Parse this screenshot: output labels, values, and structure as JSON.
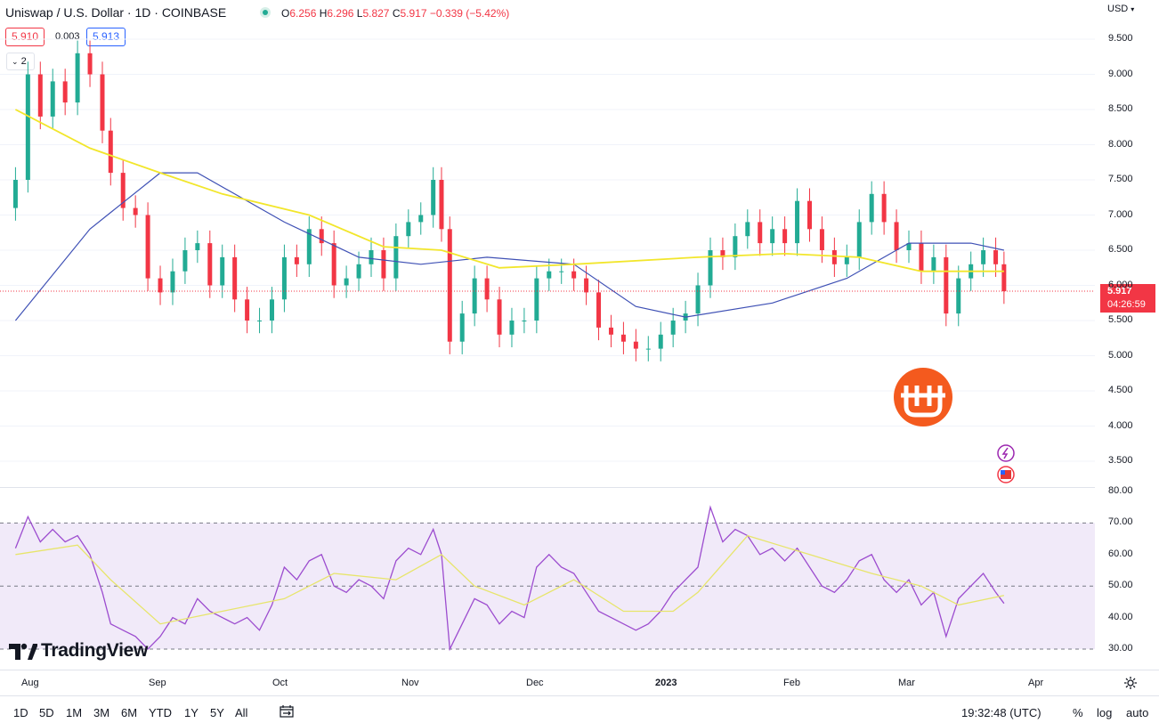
{
  "header": {
    "symbol": "Uniswap / U.S. Dollar · 1D · COINBASE",
    "o_key": "O",
    "o_val": "6.256",
    "h_key": "H",
    "h_val": "6.296",
    "l_key": "L",
    "l_val": "5.827",
    "c_key": "C",
    "c_val": "5.917",
    "change": "−0.339 (−5.42%)",
    "bid": "5.910",
    "spread": "0.003",
    "ask": "5.913",
    "collapse_count": "2",
    "status_color": "#22ab94"
  },
  "price_axis": {
    "currency": "USD",
    "ticks": [
      "9.500",
      "9.000",
      "8.500",
      "8.000",
      "7.500",
      "7.000",
      "6.500",
      "6.000",
      "5.500",
      "5.000",
      "4.500",
      "4.000",
      "3.500"
    ],
    "last_price": "5.917",
    "countdown": "04:26:59"
  },
  "rsi_axis": {
    "ticks": [
      "80.00",
      "70.00",
      "60.00",
      "50.00",
      "40.00",
      "30.00"
    ]
  },
  "time_axis": {
    "labels": [
      "Aug",
      "Sep",
      "Oct",
      "Nov",
      "Dec",
      "2023",
      "Feb",
      "Mar",
      "Apr"
    ]
  },
  "toolbar": {
    "timeframes": [
      "1D",
      "5D",
      "1M",
      "3M",
      "6M",
      "YTD",
      "1Y",
      "5Y",
      "All"
    ],
    "clock": "19:32:48 (UTC)",
    "percent": "%",
    "log": "log",
    "auto": "auto"
  },
  "branding": {
    "logo_text": "TradingView"
  },
  "colors": {
    "up": "#22ab94",
    "down": "#f23645",
    "ma_fast": "#3f51b5",
    "ma_slow": "#f2e62b",
    "rsi_line": "#9c4ccf",
    "rsi_ma": "#e7e56b",
    "rsi_band": "#f1eaf9",
    "accent": "#2962ff"
  },
  "chart_data": [
    {
      "type": "candlestick",
      "title": "Uniswap / U.S. Dollar · 1D · COINBASE",
      "y_range": [
        3.2,
        9.85
      ],
      "x_range": [
        "2022-07-28",
        "2023-04-12"
      ],
      "last_close": 5.917,
      "closes": [
        {
          "date": "2022-07-28",
          "close": 7.5
        },
        {
          "date": "2022-07-31",
          "close": 9.0
        },
        {
          "date": "2022-08-03",
          "close": 8.4
        },
        {
          "date": "2022-08-06",
          "close": 8.9
        },
        {
          "date": "2022-08-09",
          "close": 8.6
        },
        {
          "date": "2022-08-12",
          "close": 9.3
        },
        {
          "date": "2022-08-15",
          "close": 9.0
        },
        {
          "date": "2022-08-18",
          "close": 8.2
        },
        {
          "date": "2022-08-20",
          "close": 7.6
        },
        {
          "date": "2022-08-23",
          "close": 7.1
        },
        {
          "date": "2022-08-26",
          "close": 7.0
        },
        {
          "date": "2022-08-29",
          "close": 6.1
        },
        {
          "date": "2022-09-01",
          "close": 5.9
        },
        {
          "date": "2022-09-04",
          "close": 6.2
        },
        {
          "date": "2022-09-07",
          "close": 6.5
        },
        {
          "date": "2022-09-10",
          "close": 6.6
        },
        {
          "date": "2022-09-13",
          "close": 6.0
        },
        {
          "date": "2022-09-16",
          "close": 6.4
        },
        {
          "date": "2022-09-19",
          "close": 5.8
        },
        {
          "date": "2022-09-22",
          "close": 5.5
        },
        {
          "date": "2022-09-25",
          "close": 5.5
        },
        {
          "date": "2022-09-28",
          "close": 5.8
        },
        {
          "date": "2022-10-01",
          "close": 6.4
        },
        {
          "date": "2022-10-04",
          "close": 6.3
        },
        {
          "date": "2022-10-07",
          "close": 6.8
        },
        {
          "date": "2022-10-10",
          "close": 6.6
        },
        {
          "date": "2022-10-13",
          "close": 6.0
        },
        {
          "date": "2022-10-16",
          "close": 6.1
        },
        {
          "date": "2022-10-19",
          "close": 6.3
        },
        {
          "date": "2022-10-22",
          "close": 6.5
        },
        {
          "date": "2022-10-25",
          "close": 6.1
        },
        {
          "date": "2022-10-28",
          "close": 6.7
        },
        {
          "date": "2022-10-31",
          "close": 6.9
        },
        {
          "date": "2022-11-03",
          "close": 7.0
        },
        {
          "date": "2022-11-06",
          "close": 7.5
        },
        {
          "date": "2022-11-08",
          "close": 6.8
        },
        {
          "date": "2022-11-10",
          "close": 5.2
        },
        {
          "date": "2022-11-13",
          "close": 5.6
        },
        {
          "date": "2022-11-16",
          "close": 6.1
        },
        {
          "date": "2022-11-19",
          "close": 5.8
        },
        {
          "date": "2022-11-22",
          "close": 5.3
        },
        {
          "date": "2022-11-25",
          "close": 5.5
        },
        {
          "date": "2022-11-28",
          "close": 5.5
        },
        {
          "date": "2022-12-01",
          "close": 6.1
        },
        {
          "date": "2022-12-04",
          "close": 6.2
        },
        {
          "date": "2022-12-07",
          "close": 6.2
        },
        {
          "date": "2022-12-10",
          "close": 6.1
        },
        {
          "date": "2022-12-13",
          "close": 5.9
        },
        {
          "date": "2022-12-16",
          "close": 5.4
        },
        {
          "date": "2022-12-19",
          "close": 5.3
        },
        {
          "date": "2022-12-22",
          "close": 5.2
        },
        {
          "date": "2022-12-25",
          "close": 5.1
        },
        {
          "date": "2022-12-28",
          "close": 5.1
        },
        {
          "date": "2022-12-31",
          "close": 5.3
        },
        {
          "date": "2023-01-03",
          "close": 5.5
        },
        {
          "date": "2023-01-06",
          "close": 5.6
        },
        {
          "date": "2023-01-09",
          "close": 6.0
        },
        {
          "date": "2023-01-12",
          "close": 6.5
        },
        {
          "date": "2023-01-15",
          "close": 6.4
        },
        {
          "date": "2023-01-18",
          "close": 6.7
        },
        {
          "date": "2023-01-21",
          "close": 6.9
        },
        {
          "date": "2023-01-24",
          "close": 6.6
        },
        {
          "date": "2023-01-27",
          "close": 6.8
        },
        {
          "date": "2023-01-30",
          "close": 6.6
        },
        {
          "date": "2023-02-02",
          "close": 7.2
        },
        {
          "date": "2023-02-05",
          "close": 6.8
        },
        {
          "date": "2023-02-08",
          "close": 6.5
        },
        {
          "date": "2023-02-11",
          "close": 6.3
        },
        {
          "date": "2023-02-14",
          "close": 6.4
        },
        {
          "date": "2023-02-17",
          "close": 6.9
        },
        {
          "date": "2023-02-20",
          "close": 7.3
        },
        {
          "date": "2023-02-23",
          "close": 6.9
        },
        {
          "date": "2023-02-26",
          "close": 6.5
        },
        {
          "date": "2023-03-01",
          "close": 6.6
        },
        {
          "date": "2023-03-04",
          "close": 6.2
        },
        {
          "date": "2023-03-07",
          "close": 6.4
        },
        {
          "date": "2023-03-10",
          "close": 5.6
        },
        {
          "date": "2023-03-13",
          "close": 6.1
        },
        {
          "date": "2023-03-16",
          "close": 6.3
        },
        {
          "date": "2023-03-19",
          "close": 6.5
        },
        {
          "date": "2023-03-22",
          "close": 6.3
        },
        {
          "date": "2023-03-24",
          "close": 5.917
        }
      ],
      "overlays": [
        {
          "label": "ma_fast",
          "points": [
            [
              "2022-07-28",
              5.5
            ],
            [
              "2022-08-15",
              6.8
            ],
            [
              "2022-09-01",
              7.6
            ],
            [
              "2022-09-10",
              7.6
            ],
            [
              "2022-10-01",
              6.9
            ],
            [
              "2022-10-19",
              6.4
            ],
            [
              "2022-11-03",
              6.3
            ],
            [
              "2022-11-19",
              6.4
            ],
            [
              "2022-12-10",
              6.3
            ],
            [
              "2022-12-25",
              5.7
            ],
            [
              "2023-01-06",
              5.55
            ],
            [
              "2023-01-27",
              5.75
            ],
            [
              "2023-02-14",
              6.1
            ],
            [
              "2023-03-01",
              6.6
            ],
            [
              "2023-03-16",
              6.6
            ],
            [
              "2023-03-24",
              6.5
            ]
          ]
        },
        {
          "label": "ma_slow",
          "points": [
            [
              "2022-07-28",
              8.5
            ],
            [
              "2022-08-15",
              7.95
            ],
            [
              "2022-09-01",
              7.6
            ],
            [
              "2022-09-16",
              7.3
            ],
            [
              "2022-10-07",
              7.0
            ],
            [
              "2022-10-25",
              6.55
            ],
            [
              "2022-11-08",
              6.5
            ],
            [
              "2022-11-22",
              6.25
            ],
            [
              "2022-12-10",
              6.3
            ],
            [
              "2023-01-09",
              6.4
            ],
            [
              "2023-01-30",
              6.45
            ],
            [
              "2023-02-17",
              6.4
            ],
            [
              "2023-03-04",
              6.2
            ],
            [
              "2023-03-24",
              6.2
            ]
          ]
        }
      ]
    },
    {
      "type": "line",
      "y_range": [
        27.5,
        81
      ],
      "bands": [
        30,
        50,
        70
      ],
      "series": [
        {
          "label": "rsi",
          "points": [
            [
              "2022-07-28",
              62
            ],
            [
              "2022-07-31",
              72
            ],
            [
              "2022-08-03",
              64
            ],
            [
              "2022-08-06",
              68
            ],
            [
              "2022-08-09",
              64
            ],
            [
              "2022-08-12",
              66
            ],
            [
              "2022-08-15",
              60
            ],
            [
              "2022-08-18",
              48
            ],
            [
              "2022-08-20",
              38
            ],
            [
              "2022-08-23",
              36
            ],
            [
              "2022-08-26",
              34
            ],
            [
              "2022-08-29",
              30
            ],
            [
              "2022-09-01",
              34
            ],
            [
              "2022-09-04",
              40
            ],
            [
              "2022-09-07",
              38
            ],
            [
              "2022-09-10",
              46
            ],
            [
              "2022-09-13",
              42
            ],
            [
              "2022-09-16",
              40
            ],
            [
              "2022-09-19",
              38
            ],
            [
              "2022-09-22",
              40
            ],
            [
              "2022-09-25",
              36
            ],
            [
              "2022-09-28",
              44
            ],
            [
              "2022-10-01",
              56
            ],
            [
              "2022-10-04",
              52
            ],
            [
              "2022-10-07",
              58
            ],
            [
              "2022-10-10",
              60
            ],
            [
              "2022-10-13",
              50
            ],
            [
              "2022-10-16",
              48
            ],
            [
              "2022-10-19",
              52
            ],
            [
              "2022-10-22",
              50
            ],
            [
              "2022-10-25",
              46
            ],
            [
              "2022-10-28",
              58
            ],
            [
              "2022-10-31",
              62
            ],
            [
              "2022-11-03",
              60
            ],
            [
              "2022-11-06",
              68
            ],
            [
              "2022-11-08",
              60
            ],
            [
              "2022-11-10",
              30
            ],
            [
              "2022-11-13",
              38
            ],
            [
              "2022-11-16",
              46
            ],
            [
              "2022-11-19",
              44
            ],
            [
              "2022-11-22",
              38
            ],
            [
              "2022-11-25",
              42
            ],
            [
              "2022-11-28",
              40
            ],
            [
              "2022-12-01",
              56
            ],
            [
              "2022-12-04",
              60
            ],
            [
              "2022-12-07",
              56
            ],
            [
              "2022-12-10",
              54
            ],
            [
              "2022-12-13",
              48
            ],
            [
              "2022-12-16",
              42
            ],
            [
              "2022-12-19",
              40
            ],
            [
              "2022-12-22",
              38
            ],
            [
              "2022-12-25",
              36
            ],
            [
              "2022-12-28",
              38
            ],
            [
              "2022-12-31",
              42
            ],
            [
              "2023-01-03",
              48
            ],
            [
              "2023-01-06",
              52
            ],
            [
              "2023-01-09",
              56
            ],
            [
              "2023-01-12",
              75
            ],
            [
              "2023-01-15",
              64
            ],
            [
              "2023-01-18",
              68
            ],
            [
              "2023-01-21",
              66
            ],
            [
              "2023-01-24",
              60
            ],
            [
              "2023-01-27",
              62
            ],
            [
              "2023-01-30",
              58
            ],
            [
              "2023-02-02",
              62
            ],
            [
              "2023-02-05",
              56
            ],
            [
              "2023-02-08",
              50
            ],
            [
              "2023-02-11",
              48
            ],
            [
              "2023-02-14",
              52
            ],
            [
              "2023-02-17",
              58
            ],
            [
              "2023-02-20",
              60
            ],
            [
              "2023-02-23",
              52
            ],
            [
              "2023-02-26",
              48
            ],
            [
              "2023-03-01",
              52
            ],
            [
              "2023-03-04",
              44
            ],
            [
              "2023-03-07",
              48
            ],
            [
              "2023-03-10",
              34
            ],
            [
              "2023-03-13",
              46
            ],
            [
              "2023-03-16",
              50
            ],
            [
              "2023-03-19",
              54
            ],
            [
              "2023-03-22",
              48
            ],
            [
              "2023-03-24",
              44.5
            ]
          ]
        },
        {
          "label": "rsi_ma",
          "points": [
            [
              "2022-07-28",
              60
            ],
            [
              "2022-08-12",
              63
            ],
            [
              "2022-08-20",
              52
            ],
            [
              "2022-09-01",
              38
            ],
            [
              "2022-09-16",
              42
            ],
            [
              "2022-10-01",
              46
            ],
            [
              "2022-10-13",
              54
            ],
            [
              "2022-10-28",
              52
            ],
            [
              "2022-11-08",
              60
            ],
            [
              "2022-11-16",
              50
            ],
            [
              "2022-11-28",
              44
            ],
            [
              "2022-12-10",
              52
            ],
            [
              "2022-12-22",
              42
            ],
            [
              "2023-01-03",
              42
            ],
            [
              "2023-01-09",
              48
            ],
            [
              "2023-01-21",
              66
            ],
            [
              "2023-02-05",
              60
            ],
            [
              "2023-02-20",
              54
            ],
            [
              "2023-03-04",
              50
            ],
            [
              "2023-03-13",
              44
            ],
            [
              "2023-03-24",
              47
            ]
          ]
        }
      ]
    }
  ]
}
